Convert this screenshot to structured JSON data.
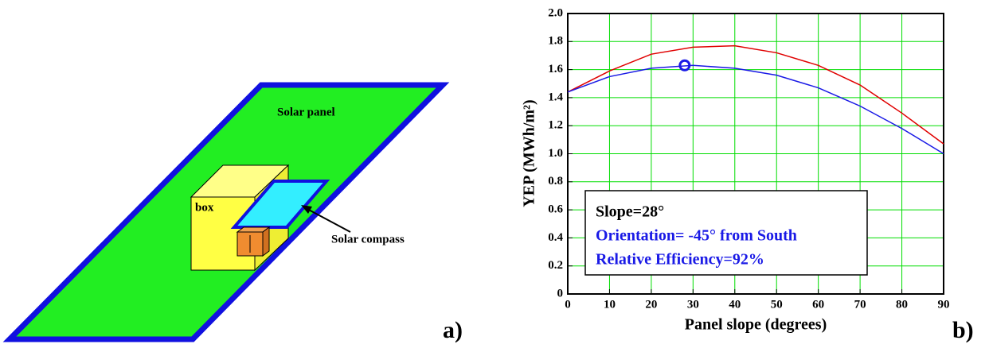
{
  "diagram": {
    "panel_label": "Solar panel",
    "box_label": "box",
    "compass_label": "Solar compass",
    "part_label": "a)"
  },
  "chart_data": {
    "type": "line",
    "part_label": "b)",
    "x_label": "Panel slope (degrees)",
    "y_label": "YEP (MWh/m²)",
    "x": [
      0,
      10,
      20,
      30,
      40,
      50,
      60,
      70,
      80,
      90
    ],
    "series": [
      {
        "color": "#e00000",
        "values": [
          1.44,
          1.59,
          1.71,
          1.76,
          1.77,
          1.72,
          1.63,
          1.49,
          1.29,
          1.07
        ]
      },
      {
        "color": "#1a1ae6",
        "values": [
          1.44,
          1.55,
          1.61,
          1.63,
          1.61,
          1.56,
          1.47,
          1.34,
          1.18,
          1.0
        ]
      }
    ],
    "highlight": {
      "x": 28,
      "y": 1.63,
      "color": "#1a1ae6"
    },
    "xlim": [
      0,
      90
    ],
    "ylim": [
      0,
      2
    ],
    "xticks": [
      0,
      10,
      20,
      30,
      40,
      50,
      60,
      70,
      80,
      90
    ],
    "yticks": [
      0,
      0.2,
      0.4,
      0.6,
      0.8,
      {
        "value": 1,
        "label": "1.0"
      },
      1.2,
      1.4,
      1.6,
      1.8,
      {
        "value": 2,
        "label": "2.0"
      }
    ],
    "grid": true,
    "grid_color": "#00dd00",
    "annotations": [
      {
        "text": "Slope=28°",
        "color": "#000000"
      },
      {
        "text": "Orientation= -45° from South",
        "color": "#1a1ae6"
      },
      {
        "text": "Relative Efficiency=92%",
        "color": "#1a1ae6"
      }
    ]
  }
}
